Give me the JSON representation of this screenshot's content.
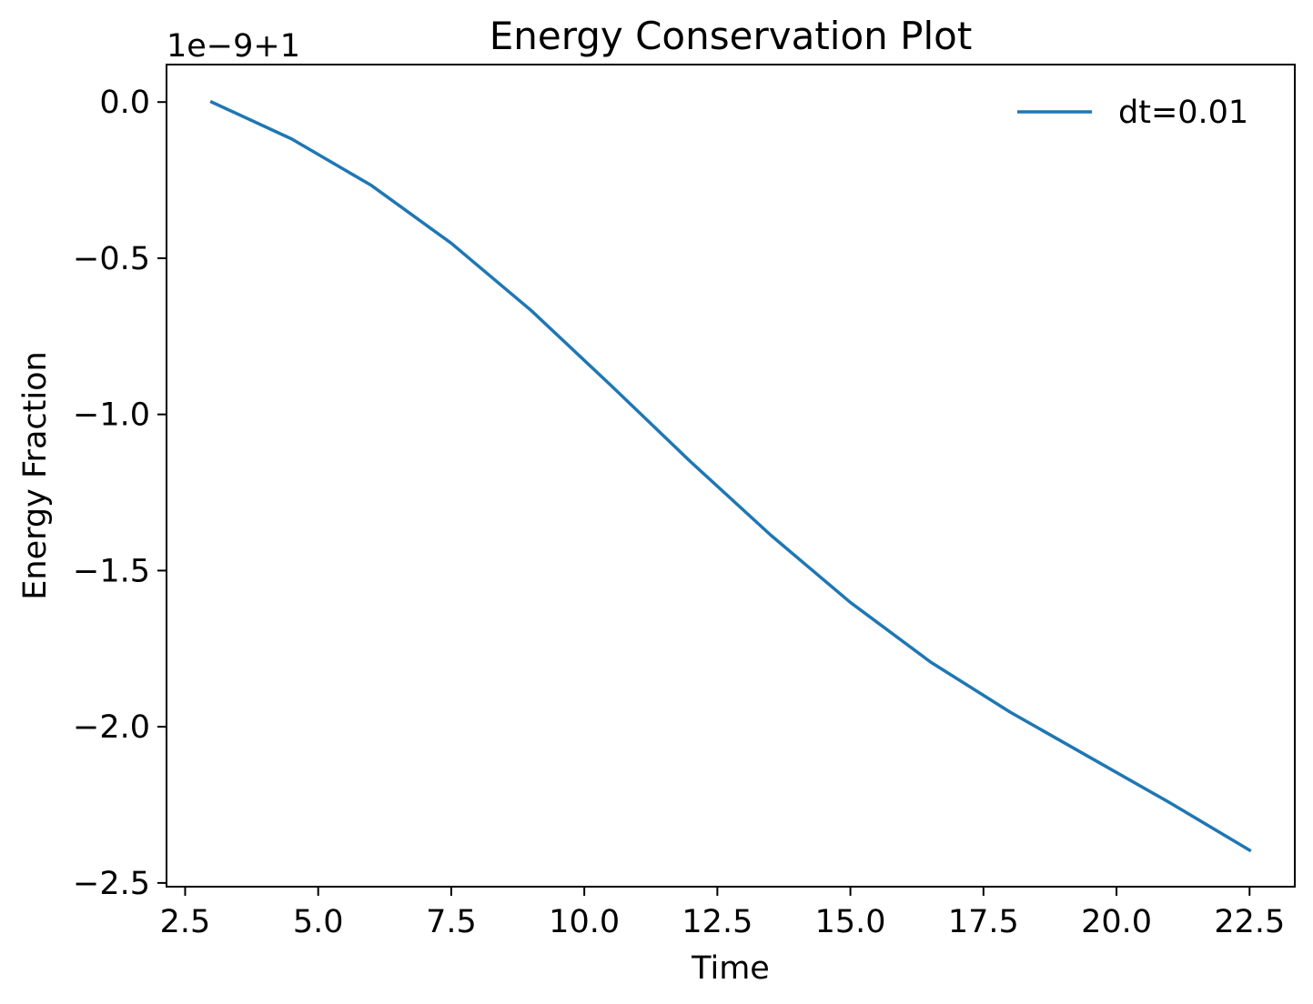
{
  "chart_data": {
    "type": "line",
    "title": "Energy Conservation Plot",
    "xlabel": "Time",
    "ylabel": "Energy Fraction",
    "y_offset_label": "1e−9+1",
    "xlim": [
      2.15,
      23.35
    ],
    "ylim": [
      -2.512,
      0.12
    ],
    "xticks": [
      2.5,
      5.0,
      7.5,
      10.0,
      12.5,
      15.0,
      17.5,
      20.0,
      22.5
    ],
    "xtick_labels": [
      "2.5",
      "5.0",
      "7.5",
      "10.0",
      "12.5",
      "15.0",
      "17.5",
      "20.0",
      "22.5"
    ],
    "yticks": [
      0.0,
      -0.5,
      -1.0,
      -1.5,
      -2.0,
      -2.5
    ],
    "ytick_labels": [
      "0.0",
      "−0.5",
      "−1.0",
      "−1.5",
      "−2.0",
      "−2.5"
    ],
    "grid": false,
    "legend_position": "upper right",
    "series": [
      {
        "name": "dt=0.01",
        "color": "#1f77b4",
        "x": [
          3.0,
          4.5,
          6.0,
          7.5,
          9.0,
          10.5,
          12.0,
          13.5,
          15.0,
          16.5,
          18.0,
          19.5,
          21.0,
          22.5
        ],
        "y": [
          0.0,
          -0.118,
          -0.267,
          -0.452,
          -0.667,
          -0.907,
          -1.152,
          -1.386,
          -1.602,
          -1.792,
          -1.953,
          -2.098,
          -2.243,
          -2.395
        ]
      }
    ]
  }
}
